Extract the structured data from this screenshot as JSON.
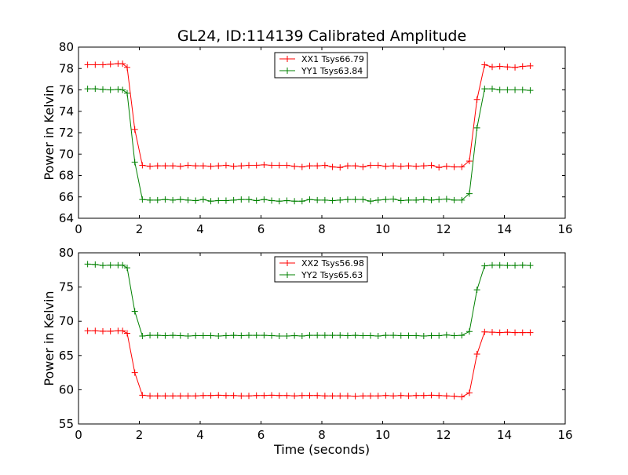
{
  "figure": {
    "title": "GL24, ID:114139 Calibrated Amplitude"
  },
  "chart_data": [
    {
      "type": "line",
      "title": "GL24, ID:114139 Calibrated Amplitude",
      "xlabel": "",
      "ylabel": "Power in Kelvin",
      "xlim": [
        0,
        16
      ],
      "ylim": [
        64,
        80
      ],
      "xticks": [
        "0",
        "2",
        "4",
        "6",
        "8",
        "10",
        "12",
        "14",
        "16"
      ],
      "yticks": [
        "64",
        "66",
        "68",
        "70",
        "72",
        "74",
        "76",
        "78",
        "80"
      ],
      "grid": false,
      "legend_position": "top-center",
      "x": [
        0.3,
        0.55,
        0.8,
        1.05,
        1.3,
        1.45,
        1.6,
        1.85,
        2.1,
        2.35,
        2.6,
        2.85,
        3.1,
        3.35,
        3.6,
        3.85,
        4.1,
        4.35,
        4.6,
        4.85,
        5.1,
        5.35,
        5.6,
        5.85,
        6.1,
        6.35,
        6.6,
        6.85,
        7.1,
        7.35,
        7.6,
        7.85,
        8.1,
        8.35,
        8.6,
        8.85,
        9.1,
        9.35,
        9.6,
        9.85,
        10.1,
        10.35,
        10.6,
        10.85,
        11.1,
        11.35,
        11.6,
        11.85,
        12.1,
        12.35,
        12.6,
        12.85,
        13.1,
        13.35,
        13.6,
        13.85,
        14.1,
        14.35,
        14.6,
        14.85
      ],
      "series": [
        {
          "name": "XX1 Tsys66.79",
          "color": "#ff0000",
          "values": [
            78.35,
            78.35,
            78.35,
            78.4,
            78.45,
            78.45,
            78.1,
            72.3,
            68.95,
            68.85,
            68.9,
            68.9,
            68.9,
            68.85,
            68.95,
            68.9,
            68.9,
            68.85,
            68.9,
            68.95,
            68.85,
            68.9,
            68.95,
            68.95,
            69.0,
            68.95,
            68.95,
            68.95,
            68.85,
            68.8,
            68.9,
            68.9,
            68.95,
            68.8,
            68.75,
            68.9,
            68.9,
            68.8,
            68.95,
            68.95,
            68.85,
            68.9,
            68.85,
            68.9,
            68.85,
            68.9,
            68.95,
            68.75,
            68.85,
            68.8,
            68.8,
            69.35,
            75.1,
            78.35,
            78.15,
            78.2,
            78.15,
            78.1,
            78.2,
            78.25
          ]
        },
        {
          "name": "YY1 Tsys63.84",
          "color": "#008000",
          "values": [
            76.1,
            76.1,
            76.05,
            76.0,
            76.05,
            76.0,
            75.7,
            69.25,
            65.75,
            65.7,
            65.7,
            65.75,
            65.7,
            65.75,
            65.7,
            65.65,
            65.75,
            65.6,
            65.65,
            65.65,
            65.7,
            65.75,
            65.75,
            65.65,
            65.75,
            65.65,
            65.6,
            65.65,
            65.6,
            65.6,
            65.75,
            65.7,
            65.7,
            65.65,
            65.7,
            65.75,
            65.75,
            65.75,
            65.6,
            65.7,
            65.75,
            65.8,
            65.65,
            65.7,
            65.7,
            65.75,
            65.7,
            65.75,
            65.8,
            65.7,
            65.7,
            66.3,
            72.45,
            76.1,
            76.1,
            76.0,
            76.0,
            76.0,
            76.0,
            75.95
          ]
        }
      ]
    },
    {
      "type": "line",
      "title": "",
      "xlabel": "Time (seconds)",
      "ylabel": "Power in Kelvin",
      "xlim": [
        0,
        16
      ],
      "ylim": [
        55,
        80
      ],
      "xticks": [
        "0",
        "2",
        "4",
        "6",
        "8",
        "10",
        "12",
        "14",
        "16"
      ],
      "yticks": [
        "55",
        "60",
        "65",
        "70",
        "75",
        "80"
      ],
      "grid": false,
      "legend_position": "top-center",
      "x": [
        0.3,
        0.55,
        0.8,
        1.05,
        1.3,
        1.45,
        1.6,
        1.85,
        2.1,
        2.35,
        2.6,
        2.85,
        3.1,
        3.35,
        3.6,
        3.85,
        4.1,
        4.35,
        4.6,
        4.85,
        5.1,
        5.35,
        5.6,
        5.85,
        6.1,
        6.35,
        6.6,
        6.85,
        7.1,
        7.35,
        7.6,
        7.85,
        8.1,
        8.35,
        8.6,
        8.85,
        9.1,
        9.35,
        9.6,
        9.85,
        10.1,
        10.35,
        10.6,
        10.85,
        11.1,
        11.35,
        11.6,
        11.85,
        12.1,
        12.35,
        12.6,
        12.85,
        13.1,
        13.35,
        13.6,
        13.85,
        14.1,
        14.35,
        14.6,
        14.85
      ],
      "series": [
        {
          "name": "XX2 Tsys56.98",
          "color": "#ff0000",
          "values": [
            68.6,
            68.6,
            68.55,
            68.55,
            68.6,
            68.6,
            68.25,
            62.5,
            59.2,
            59.1,
            59.1,
            59.1,
            59.1,
            59.1,
            59.1,
            59.1,
            59.15,
            59.15,
            59.2,
            59.15,
            59.15,
            59.1,
            59.1,
            59.15,
            59.15,
            59.2,
            59.15,
            59.15,
            59.1,
            59.15,
            59.15,
            59.15,
            59.1,
            59.1,
            59.1,
            59.1,
            59.05,
            59.1,
            59.1,
            59.1,
            59.15,
            59.1,
            59.15,
            59.1,
            59.15,
            59.15,
            59.2,
            59.15,
            59.1,
            59.05,
            58.95,
            59.55,
            65.2,
            68.45,
            68.4,
            68.35,
            68.4,
            68.35,
            68.35,
            68.35
          ]
        },
        {
          "name": "YY2 Tsys65.63",
          "color": "#008000",
          "values": [
            78.35,
            78.3,
            78.15,
            78.2,
            78.2,
            78.2,
            77.8,
            71.45,
            67.85,
            67.95,
            67.95,
            67.9,
            67.95,
            67.9,
            67.85,
            67.9,
            67.9,
            67.9,
            67.85,
            67.9,
            67.95,
            67.9,
            67.95,
            67.95,
            67.95,
            67.9,
            67.85,
            67.85,
            67.9,
            67.85,
            67.95,
            67.95,
            67.95,
            67.95,
            67.95,
            67.9,
            67.95,
            67.9,
            67.9,
            67.85,
            67.95,
            67.95,
            67.9,
            67.9,
            67.9,
            67.85,
            67.9,
            67.9,
            68.0,
            67.9,
            67.95,
            68.5,
            74.6,
            78.1,
            78.2,
            78.2,
            78.15,
            78.15,
            78.2,
            78.15
          ]
        }
      ]
    }
  ]
}
